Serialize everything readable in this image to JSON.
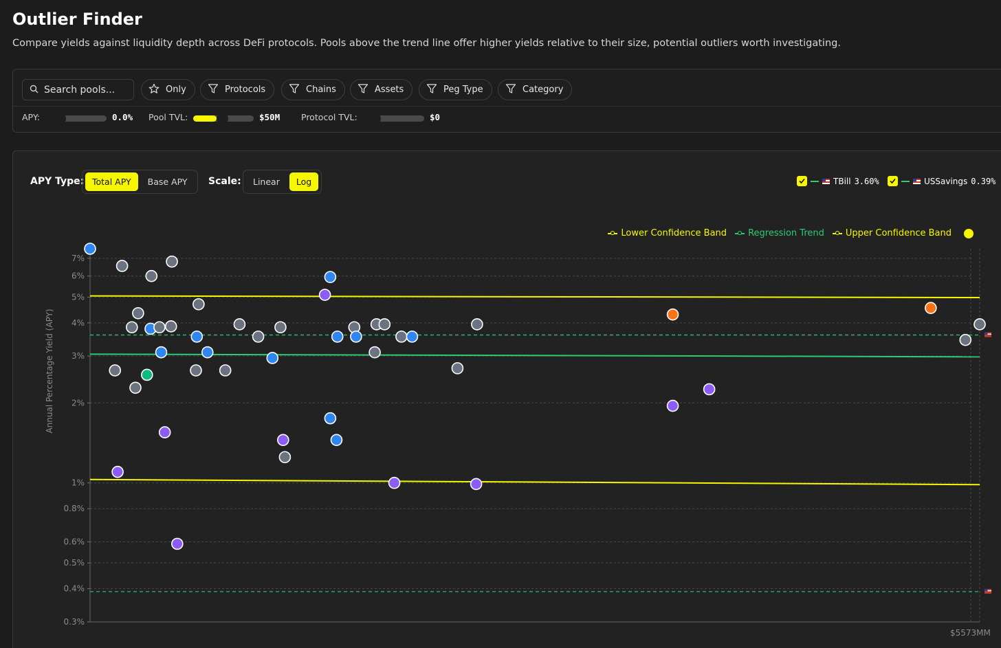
{
  "header": {
    "title": "Outlier Finder",
    "description": "Compare yields against liquidity depth across DeFi protocols. Pools above the trend line offer higher yields relative to their size, potential outliers worth investigating."
  },
  "filters": {
    "search_placeholder": "Search pools...",
    "chips": [
      "Only",
      "Protocols",
      "Chains",
      "Assets",
      "Peg Type",
      "Category"
    ],
    "apy_label": "APY:",
    "apy_value": "0.0%",
    "pool_tvl_label": "Pool TVL:",
    "pool_tvl_value": "$50M",
    "protocol_tvl_label": "Protocol TVL:",
    "protocol_tvl_value": "$0",
    "accent_color": "#f6f600"
  },
  "controls": {
    "apy_type_label": "APY Type:",
    "apy_type_options": [
      "Total APY",
      "Base APY"
    ],
    "apy_type_selected": "Total APY",
    "scale_label": "Scale:",
    "scale_options": [
      "Linear",
      "Log"
    ],
    "scale_selected": "Log"
  },
  "benchmarks": [
    {
      "name": "TBill",
      "value": "3.60%",
      "checked": true
    },
    {
      "name": "USSavings",
      "value": "0.39%",
      "checked": true
    }
  ],
  "legend": {
    "lower": "Lower Confidence Band",
    "trend": "Regression Trend",
    "upper": "Upper Confidence Band"
  },
  "chart_data": {
    "type": "scatter",
    "ylabel": "Annual Percentage Yield (APY)",
    "yscale": "log",
    "ylim": [
      0.3,
      7.6
    ],
    "yticks": [
      "0.3%",
      "0.4%",
      "0.5%",
      "0.6%",
      "0.8%",
      "1%",
      "2%",
      "3%",
      "4%",
      "5%",
      "6%",
      "7%"
    ],
    "ytick_values": [
      0.3,
      0.4,
      0.5,
      0.6,
      0.8,
      1,
      2,
      3,
      4,
      5,
      6,
      7
    ],
    "x_end_label": "$5573MM",
    "xlim": [
      0,
      1000
    ],
    "trend": {
      "start": 3.05,
      "end": 2.98,
      "color": "#2ecc71"
    },
    "upper_band": {
      "start": 5.05,
      "end": 4.98,
      "color": "#f6f600"
    },
    "lower_band": {
      "start": 1.03,
      "end": 0.985,
      "color": "#f6f600"
    },
    "benchmark_lines": [
      {
        "name": "TBill",
        "value": 3.6
      },
      {
        "name": "USSavings",
        "value": 0.39
      }
    ],
    "category_colors": {
      "gray": "#6b7280",
      "blue": "#2f86f0",
      "purple": "#8b5cf6",
      "green": "#10b981",
      "orange": "#f97316"
    },
    "points": [
      {
        "x": 0,
        "y": 7.6,
        "c": "blue"
      },
      {
        "x": 36,
        "y": 6.55,
        "c": "gray"
      },
      {
        "x": 92,
        "y": 6.8,
        "c": "gray"
      },
      {
        "x": 69,
        "y": 6.0,
        "c": "gray"
      },
      {
        "x": 122,
        "y": 4.7,
        "c": "gray"
      },
      {
        "x": 54,
        "y": 4.35,
        "c": "gray"
      },
      {
        "x": 47,
        "y": 3.85,
        "c": "gray"
      },
      {
        "x": 68,
        "y": 3.8,
        "c": "blue"
      },
      {
        "x": 78,
        "y": 3.85,
        "c": "gray"
      },
      {
        "x": 91,
        "y": 3.88,
        "c": "gray"
      },
      {
        "x": 80,
        "y": 3.1,
        "c": "blue"
      },
      {
        "x": 120,
        "y": 3.55,
        "c": "blue"
      },
      {
        "x": 132,
        "y": 3.1,
        "c": "blue"
      },
      {
        "x": 28,
        "y": 2.65,
        "c": "gray"
      },
      {
        "x": 64,
        "y": 2.55,
        "c": "green"
      },
      {
        "x": 51,
        "y": 2.28,
        "c": "gray"
      },
      {
        "x": 119,
        "y": 2.65,
        "c": "gray"
      },
      {
        "x": 152,
        "y": 2.65,
        "c": "gray"
      },
      {
        "x": 84,
        "y": 1.55,
        "c": "purple"
      },
      {
        "x": 31,
        "y": 1.1,
        "c": "purple"
      },
      {
        "x": 98,
        "y": 0.59,
        "c": "purple"
      },
      {
        "x": 168,
        "y": 3.95,
        "c": "gray"
      },
      {
        "x": 189,
        "y": 3.55,
        "c": "gray"
      },
      {
        "x": 214,
        "y": 3.85,
        "c": "gray"
      },
      {
        "x": 205,
        "y": 2.95,
        "c": "blue"
      },
      {
        "x": 217,
        "y": 1.45,
        "c": "purple"
      },
      {
        "x": 219,
        "y": 1.25,
        "c": "gray"
      },
      {
        "x": 264,
        "y": 5.1,
        "c": "purple"
      },
      {
        "x": 270,
        "y": 5.95,
        "c": "blue"
      },
      {
        "x": 278,
        "y": 3.55,
        "c": "blue"
      },
      {
        "x": 270,
        "y": 1.75,
        "c": "blue"
      },
      {
        "x": 277,
        "y": 1.45,
        "c": "blue"
      },
      {
        "x": 297,
        "y": 3.85,
        "c": "gray"
      },
      {
        "x": 299,
        "y": 3.55,
        "c": "blue"
      },
      {
        "x": 322,
        "y": 3.95,
        "c": "gray"
      },
      {
        "x": 331,
        "y": 3.95,
        "c": "gray"
      },
      {
        "x": 320,
        "y": 3.1,
        "c": "gray"
      },
      {
        "x": 350,
        "y": 3.55,
        "c": "gray"
      },
      {
        "x": 362,
        "y": 3.55,
        "c": "blue"
      },
      {
        "x": 342,
        "y": 1.0,
        "c": "purple"
      },
      {
        "x": 413,
        "y": 2.7,
        "c": "gray"
      },
      {
        "x": 435,
        "y": 3.95,
        "c": "gray"
      },
      {
        "x": 434,
        "y": 0.99,
        "c": "purple"
      },
      {
        "x": 655,
        "y": 4.3,
        "c": "orange"
      },
      {
        "x": 655,
        "y": 1.95,
        "c": "purple"
      },
      {
        "x": 696,
        "y": 2.25,
        "c": "purple"
      },
      {
        "x": 945,
        "y": 4.55,
        "c": "orange"
      },
      {
        "x": 984,
        "y": 3.45,
        "c": "gray"
      },
      {
        "x": 1000,
        "y": 3.95,
        "c": "gray"
      }
    ]
  }
}
